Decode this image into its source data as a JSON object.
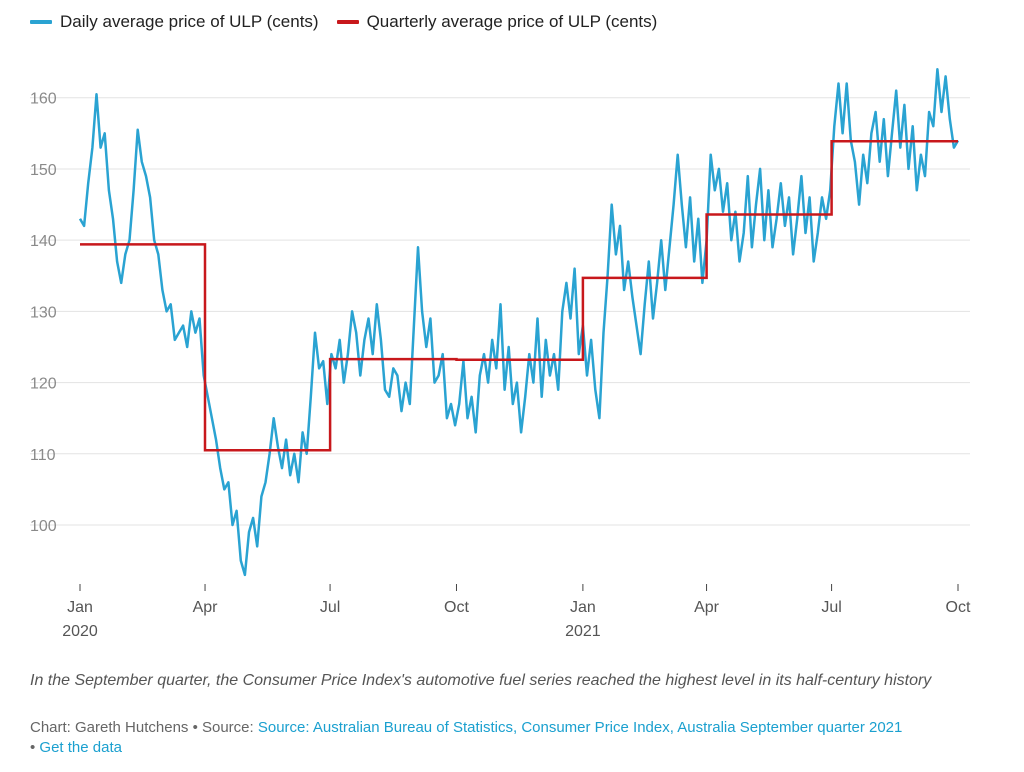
{
  "chart_data": {
    "type": "line",
    "title": "",
    "xlabel": "",
    "ylabel": "",
    "ylim": [
      92,
      166
    ],
    "y_ticks": [
      100,
      110,
      120,
      130,
      140,
      150,
      160
    ],
    "x_range": [
      "2020-01-01",
      "2021-10-01"
    ],
    "x_ticks": [
      {
        "date": "2020-01-01",
        "label": "Jan",
        "sublabel": "2020"
      },
      {
        "date": "2020-04-01",
        "label": "Apr",
        "sublabel": ""
      },
      {
        "date": "2020-07-01",
        "label": "Jul",
        "sublabel": ""
      },
      {
        "date": "2020-10-01",
        "label": "Oct",
        "sublabel": ""
      },
      {
        "date": "2021-01-01",
        "label": "Jan",
        "sublabel": "2021"
      },
      {
        "date": "2021-04-01",
        "label": "Apr",
        "sublabel": ""
      },
      {
        "date": "2021-07-01",
        "label": "Jul",
        "sublabel": ""
      },
      {
        "date": "2021-10-01",
        "label": "Oct",
        "sublabel": ""
      }
    ],
    "grid": true,
    "legend_position": "top-left",
    "series": [
      {
        "name": "Daily average price of ULP (cents)",
        "color": "#2aa3d2",
        "points": [
          [
            "2020-01-01",
            143
          ],
          [
            "2020-01-04",
            142
          ],
          [
            "2020-01-07",
            148
          ],
          [
            "2020-01-10",
            153
          ],
          [
            "2020-01-13",
            160.5
          ],
          [
            "2020-01-16",
            153
          ],
          [
            "2020-01-19",
            155
          ],
          [
            "2020-01-22",
            147
          ],
          [
            "2020-01-25",
            143
          ],
          [
            "2020-01-28",
            137
          ],
          [
            "2020-01-31",
            134
          ],
          [
            "2020-02-03",
            138
          ],
          [
            "2020-02-06",
            140
          ],
          [
            "2020-02-09",
            147
          ],
          [
            "2020-02-12",
            155.5
          ],
          [
            "2020-02-15",
            151
          ],
          [
            "2020-02-18",
            149
          ],
          [
            "2020-02-21",
            146
          ],
          [
            "2020-02-24",
            140
          ],
          [
            "2020-02-27",
            138
          ],
          [
            "2020-03-01",
            133
          ],
          [
            "2020-03-04",
            130
          ],
          [
            "2020-03-07",
            131
          ],
          [
            "2020-03-10",
            126
          ],
          [
            "2020-03-13",
            127
          ],
          [
            "2020-03-16",
            128
          ],
          [
            "2020-03-19",
            125
          ],
          [
            "2020-03-22",
            130
          ],
          [
            "2020-03-25",
            127
          ],
          [
            "2020-03-28",
            129
          ],
          [
            "2020-03-31",
            121
          ],
          [
            "2020-04-03",
            118
          ],
          [
            "2020-04-06",
            115
          ],
          [
            "2020-04-09",
            112
          ],
          [
            "2020-04-12",
            108
          ],
          [
            "2020-04-15",
            105
          ],
          [
            "2020-04-18",
            106
          ],
          [
            "2020-04-21",
            100
          ],
          [
            "2020-04-24",
            102
          ],
          [
            "2020-04-27",
            95
          ],
          [
            "2020-04-30",
            93
          ],
          [
            "2020-05-03",
            99
          ],
          [
            "2020-05-06",
            101
          ],
          [
            "2020-05-09",
            97
          ],
          [
            "2020-05-12",
            104
          ],
          [
            "2020-05-15",
            106
          ],
          [
            "2020-05-18",
            110
          ],
          [
            "2020-05-21",
            115
          ],
          [
            "2020-05-24",
            111
          ],
          [
            "2020-05-27",
            108
          ],
          [
            "2020-05-30",
            112
          ],
          [
            "2020-06-02",
            107
          ],
          [
            "2020-06-05",
            110
          ],
          [
            "2020-06-08",
            106
          ],
          [
            "2020-06-11",
            113
          ],
          [
            "2020-06-14",
            110
          ],
          [
            "2020-06-17",
            118
          ],
          [
            "2020-06-20",
            127
          ],
          [
            "2020-06-23",
            122
          ],
          [
            "2020-06-26",
            123
          ],
          [
            "2020-06-29",
            117
          ],
          [
            "2020-07-02",
            124
          ],
          [
            "2020-07-05",
            122
          ],
          [
            "2020-07-08",
            126
          ],
          [
            "2020-07-11",
            120
          ],
          [
            "2020-07-14",
            124
          ],
          [
            "2020-07-17",
            130
          ],
          [
            "2020-07-20",
            127
          ],
          [
            "2020-07-23",
            121
          ],
          [
            "2020-07-26",
            126
          ],
          [
            "2020-07-29",
            129
          ],
          [
            "2020-08-01",
            124
          ],
          [
            "2020-08-04",
            131
          ],
          [
            "2020-08-07",
            126
          ],
          [
            "2020-08-10",
            119
          ],
          [
            "2020-08-13",
            118
          ],
          [
            "2020-08-16",
            122
          ],
          [
            "2020-08-19",
            121
          ],
          [
            "2020-08-22",
            116
          ],
          [
            "2020-08-25",
            120
          ],
          [
            "2020-08-28",
            117
          ],
          [
            "2020-08-31",
            128
          ],
          [
            "2020-09-03",
            139
          ],
          [
            "2020-09-06",
            130
          ],
          [
            "2020-09-09",
            125
          ],
          [
            "2020-09-12",
            129
          ],
          [
            "2020-09-15",
            120
          ],
          [
            "2020-09-18",
            121
          ],
          [
            "2020-09-21",
            124
          ],
          [
            "2020-09-24",
            115
          ],
          [
            "2020-09-27",
            117
          ],
          [
            "2020-09-30",
            114
          ],
          [
            "2020-10-03",
            117
          ],
          [
            "2020-10-06",
            123
          ],
          [
            "2020-10-09",
            115
          ],
          [
            "2020-10-12",
            118
          ],
          [
            "2020-10-15",
            113
          ],
          [
            "2020-10-18",
            121
          ],
          [
            "2020-10-21",
            124
          ],
          [
            "2020-10-24",
            120
          ],
          [
            "2020-10-27",
            126
          ],
          [
            "2020-10-30",
            122
          ],
          [
            "2020-11-02",
            131
          ],
          [
            "2020-11-05",
            119
          ],
          [
            "2020-11-08",
            125
          ],
          [
            "2020-11-11",
            117
          ],
          [
            "2020-11-14",
            120
          ],
          [
            "2020-11-17",
            113
          ],
          [
            "2020-11-20",
            118
          ],
          [
            "2020-11-23",
            124
          ],
          [
            "2020-11-26",
            120
          ],
          [
            "2020-11-29",
            129
          ],
          [
            "2020-12-02",
            118
          ],
          [
            "2020-12-05",
            126
          ],
          [
            "2020-12-08",
            121
          ],
          [
            "2020-12-11",
            124
          ],
          [
            "2020-12-14",
            119
          ],
          [
            "2020-12-17",
            130
          ],
          [
            "2020-12-20",
            134
          ],
          [
            "2020-12-23",
            129
          ],
          [
            "2020-12-26",
            136
          ],
          [
            "2020-12-29",
            124
          ],
          [
            "2021-01-01",
            128
          ],
          [
            "2021-01-04",
            121
          ],
          [
            "2021-01-07",
            126
          ],
          [
            "2021-01-10",
            119
          ],
          [
            "2021-01-13",
            115
          ],
          [
            "2021-01-16",
            127
          ],
          [
            "2021-01-19",
            135
          ],
          [
            "2021-01-22",
            145
          ],
          [
            "2021-01-25",
            138
          ],
          [
            "2021-01-28",
            142
          ],
          [
            "2021-01-31",
            133
          ],
          [
            "2021-02-03",
            137
          ],
          [
            "2021-02-06",
            132
          ],
          [
            "2021-02-09",
            128
          ],
          [
            "2021-02-12",
            124
          ],
          [
            "2021-02-15",
            131
          ],
          [
            "2021-02-18",
            137
          ],
          [
            "2021-02-21",
            129
          ],
          [
            "2021-02-24",
            134
          ],
          [
            "2021-02-27",
            140
          ],
          [
            "2021-03-02",
            133
          ],
          [
            "2021-03-05",
            139
          ],
          [
            "2021-03-08",
            145
          ],
          [
            "2021-03-11",
            152
          ],
          [
            "2021-03-14",
            145
          ],
          [
            "2021-03-17",
            139
          ],
          [
            "2021-03-20",
            146
          ],
          [
            "2021-03-23",
            137
          ],
          [
            "2021-03-26",
            143
          ],
          [
            "2021-03-29",
            134
          ],
          [
            "2021-04-01",
            140
          ],
          [
            "2021-04-04",
            152
          ],
          [
            "2021-04-07",
            147
          ],
          [
            "2021-04-10",
            150
          ],
          [
            "2021-04-13",
            144
          ],
          [
            "2021-04-16",
            148
          ],
          [
            "2021-04-19",
            140
          ],
          [
            "2021-04-22",
            144
          ],
          [
            "2021-04-25",
            137
          ],
          [
            "2021-04-28",
            141
          ],
          [
            "2021-05-01",
            149
          ],
          [
            "2021-05-04",
            139
          ],
          [
            "2021-05-07",
            145
          ],
          [
            "2021-05-10",
            150
          ],
          [
            "2021-05-13",
            140
          ],
          [
            "2021-05-16",
            147
          ],
          [
            "2021-05-19",
            139
          ],
          [
            "2021-05-22",
            143
          ],
          [
            "2021-05-25",
            148
          ],
          [
            "2021-05-28",
            142
          ],
          [
            "2021-05-31",
            146
          ],
          [
            "2021-06-03",
            138
          ],
          [
            "2021-06-06",
            143
          ],
          [
            "2021-06-09",
            149
          ],
          [
            "2021-06-12",
            141
          ],
          [
            "2021-06-15",
            146
          ],
          [
            "2021-06-18",
            137
          ],
          [
            "2021-06-21",
            141
          ],
          [
            "2021-06-24",
            146
          ],
          [
            "2021-06-27",
            143
          ],
          [
            "2021-06-30",
            147
          ],
          [
            "2021-07-03",
            156
          ],
          [
            "2021-07-06",
            162
          ],
          [
            "2021-07-09",
            155
          ],
          [
            "2021-07-12",
            162
          ],
          [
            "2021-07-15",
            154
          ],
          [
            "2021-07-18",
            151
          ],
          [
            "2021-07-21",
            145
          ],
          [
            "2021-07-24",
            152
          ],
          [
            "2021-07-27",
            148
          ],
          [
            "2021-07-30",
            155
          ],
          [
            "2021-08-02",
            158
          ],
          [
            "2021-08-05",
            151
          ],
          [
            "2021-08-08",
            157
          ],
          [
            "2021-08-11",
            149
          ],
          [
            "2021-08-14",
            155
          ],
          [
            "2021-08-17",
            161
          ],
          [
            "2021-08-20",
            153
          ],
          [
            "2021-08-23",
            159
          ],
          [
            "2021-08-26",
            150
          ],
          [
            "2021-08-29",
            156
          ],
          [
            "2021-09-01",
            147
          ],
          [
            "2021-09-04",
            152
          ],
          [
            "2021-09-07",
            149
          ],
          [
            "2021-09-10",
            158
          ],
          [
            "2021-09-13",
            156
          ],
          [
            "2021-09-16",
            164
          ],
          [
            "2021-09-19",
            158
          ],
          [
            "2021-09-22",
            163
          ],
          [
            "2021-09-25",
            157
          ],
          [
            "2021-09-28",
            153
          ],
          [
            "2021-10-01",
            154
          ]
        ]
      },
      {
        "name": "Quarterly average price of ULP (cents)",
        "color": "#c8181c",
        "step": true,
        "segments": [
          {
            "start": "2020-01-01",
            "end": "2020-04-01",
            "value": 139.4
          },
          {
            "start": "2020-04-01",
            "end": "2020-07-01",
            "value": 110.5
          },
          {
            "start": "2020-07-01",
            "end": "2020-10-01",
            "value": 123.3
          },
          {
            "start": "2020-10-01",
            "end": "2021-01-01",
            "value": 123.2
          },
          {
            "start": "2021-01-01",
            "end": "2021-04-01",
            "value": 134.7
          },
          {
            "start": "2021-04-01",
            "end": "2021-07-01",
            "value": 143.6
          },
          {
            "start": "2021-07-01",
            "end": "2021-10-01",
            "value": 153.9
          }
        ]
      }
    ]
  },
  "caption": "In the September quarter, the Consumer Price Index's automotive fuel series reached the highest level in its half-century history",
  "source": {
    "prefix": "Chart: Gareth Hutchens • Source: ",
    "link_text": "Source: Australian Bureau of Statistics, Consumer Price Index, Australia September quarter 2021",
    "separator": " • ",
    "data_link": "Get the data"
  }
}
